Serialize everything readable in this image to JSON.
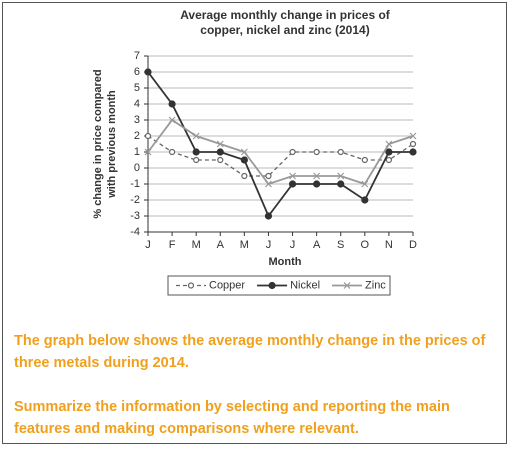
{
  "chart_data": {
    "type": "line",
    "title_lines": [
      "Average monthly change in prices of",
      "copper, nickel and zinc (2014)"
    ],
    "x_label": "Month",
    "y_label_lines": [
      "% change in price compared",
      "with previous month"
    ],
    "categories": [
      "J",
      "F",
      "M",
      "A",
      "M",
      "J",
      "J",
      "A",
      "S",
      "O",
      "N",
      "D"
    ],
    "series": [
      {
        "name": "Copper",
        "color": "#666666",
        "dash": true,
        "marker": "circle",
        "values": [
          2,
          1,
          0.5,
          0.5,
          -0.5,
          -0.5,
          1,
          1,
          1,
          0.5,
          0.5,
          1.5
        ]
      },
      {
        "name": "Nickel",
        "color": "#333333",
        "dash": false,
        "marker": "dot",
        "values": [
          6,
          4,
          1,
          1,
          0.5,
          -3,
          -1,
          -1,
          -1,
          -2,
          1,
          1
        ]
      },
      {
        "name": "Zinc",
        "color": "#999999",
        "dash": false,
        "marker": "cross",
        "values": [
          1,
          3,
          2,
          1.5,
          1,
          -1,
          -0.5,
          -0.5,
          -0.5,
          -1,
          1.5,
          2
        ]
      }
    ],
    "ylim": [
      -4,
      7
    ],
    "yticks": [
      -4,
      -3,
      -2,
      -1,
      0,
      1,
      2,
      3,
      4,
      5,
      6,
      7
    ],
    "grid": true
  },
  "task": {
    "paragraphs": [
      "The graph below shows the average monthly change in the prices of three metals during 2014.",
      "Summarize the information by selecting and reporting the main features and making comparisons where relevant."
    ]
  }
}
